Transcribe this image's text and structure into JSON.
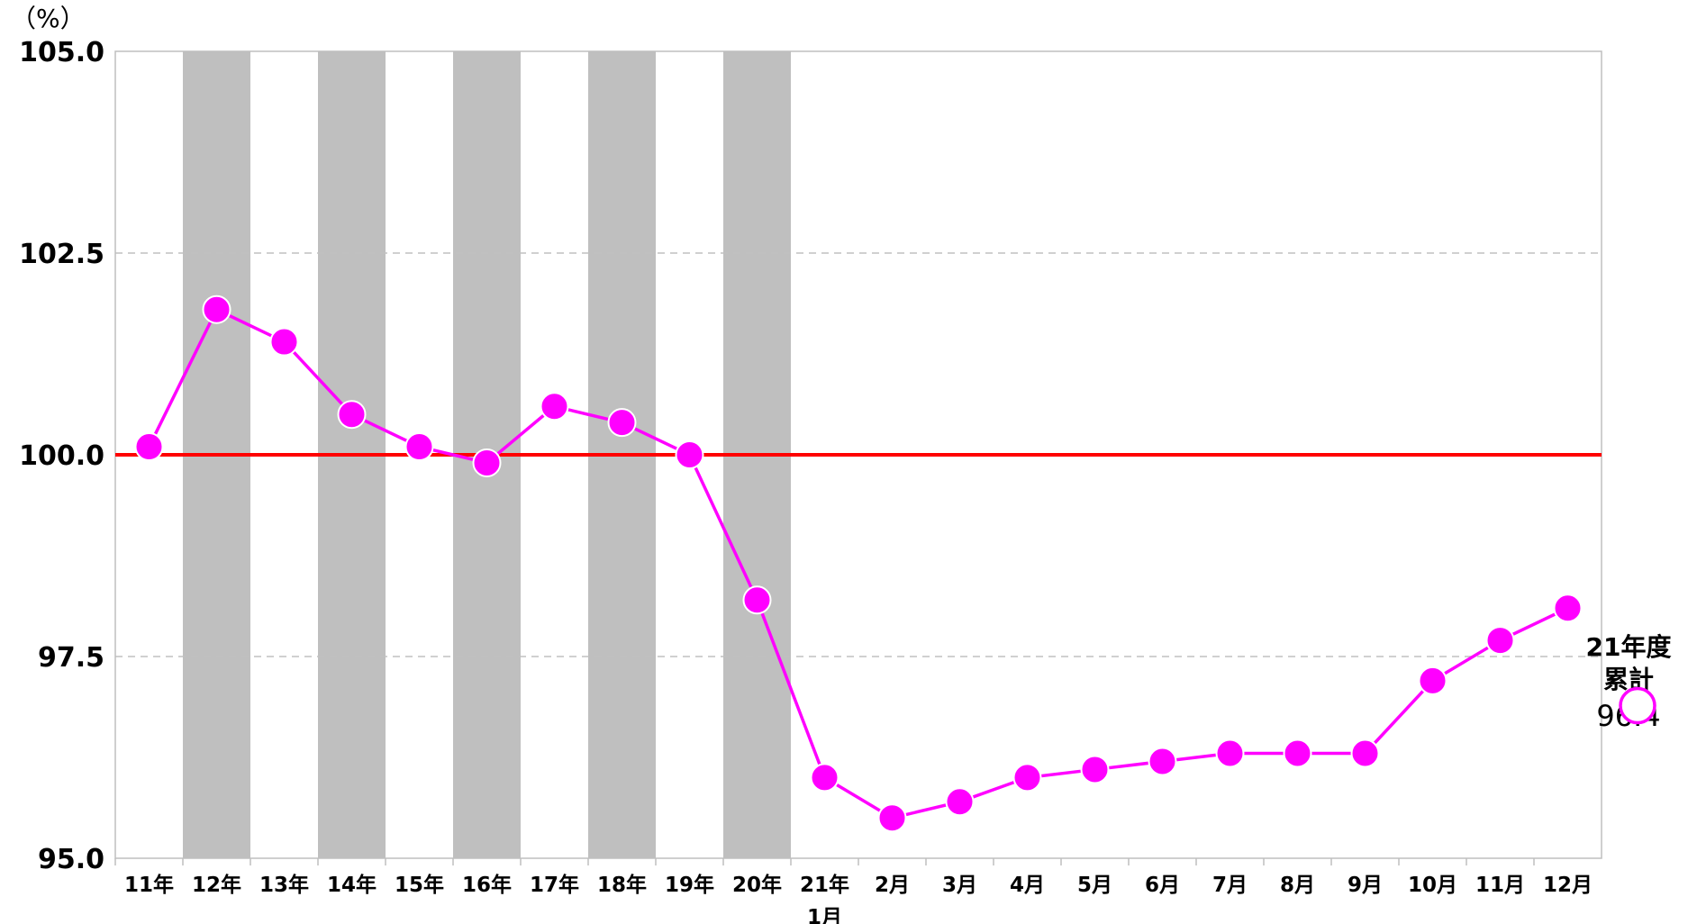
{
  "chart_data": {
    "type": "line",
    "ylabel": "（%）",
    "ylim": [
      95.0,
      105.0
    ],
    "yticks": [
      "105.0",
      "102.5",
      "100.0",
      "97.5",
      "95.0"
    ],
    "ytick_values": [
      105.0,
      102.5,
      100.0,
      97.5,
      95.0
    ],
    "grid": "horizontal dashed",
    "categories": [
      [
        "11年"
      ],
      [
        "12年"
      ],
      [
        "13年"
      ],
      [
        "14年"
      ],
      [
        "15年"
      ],
      [
        "16年"
      ],
      [
        "17年"
      ],
      [
        "18年"
      ],
      [
        "19年"
      ],
      [
        "20年"
      ],
      [
        "21年",
        "1月"
      ],
      [
        "2月"
      ],
      [
        "3月"
      ],
      [
        "4月"
      ],
      [
        "5月"
      ],
      [
        "6月"
      ],
      [
        "7月"
      ],
      [
        "8月"
      ],
      [
        "9月"
      ],
      [
        "10月"
      ],
      [
        "11月"
      ],
      [
        "12月"
      ]
    ],
    "shaded_categories": [
      "12年",
      "14年",
      "16年",
      "18年",
      "20年"
    ],
    "reference_line": {
      "value": 100.0,
      "color": "#ff0000"
    },
    "series": [
      {
        "values": [
          100.1,
          101.8,
          101.4,
          100.5,
          100.1,
          99.9,
          100.6,
          100.4,
          100.0,
          98.2,
          96.0,
          95.5,
          95.7,
          96.0,
          96.1,
          96.2,
          96.3,
          96.3,
          96.3,
          97.2,
          97.7,
          98.1
        ],
        "color": "#ff00ff"
      }
    ],
    "annotation": {
      "line1": "21年度",
      "line2": "累計",
      "value_text": "96.4",
      "value": 96.4
    },
    "colors": {
      "series": "#ff00ff",
      "reference": "#ff0000",
      "shade": "#bfbfbf",
      "grid": "#c0c0c0",
      "axis": "#bfbfbf"
    }
  }
}
